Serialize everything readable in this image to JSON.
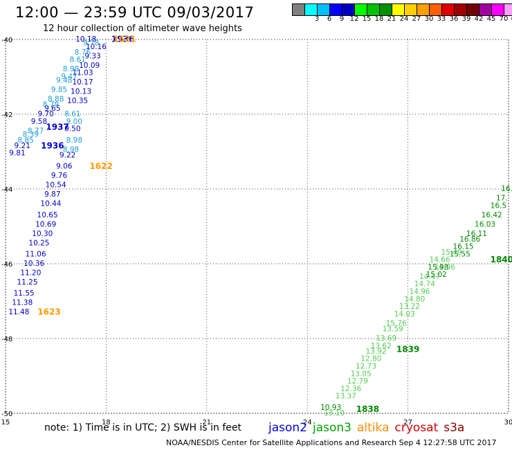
{
  "header": {
    "title": "12:00 — 23:59 UTC 09/03/2017",
    "subtitle": "12 hour collection of altimeter wave heights"
  },
  "colorbar": {
    "colors": [
      "#808080",
      "#00ffff",
      "#00bfff",
      "#0000ff",
      "#0000c0",
      "#00ff00",
      "#00c000",
      "#009000",
      "#ffff00",
      "#ffd000",
      "#ffa000",
      "#ff6000",
      "#e00000",
      "#a00000",
      "#700000",
      "#a000a0",
      "#ff00ff",
      "#ffa0ff",
      "#000000"
    ],
    "labels": [
      "3",
      "6",
      "9",
      "12",
      "15",
      "18",
      "21",
      "24",
      "27",
      "30",
      "33",
      "36",
      "39",
      "42",
      "45",
      "70",
      "(ft)"
    ]
  },
  "note": "note:  1) Time is in UTC;  2) SWH is in feet",
  "legend": [
    {
      "name": "jason2",
      "color": "#0000e0"
    },
    {
      "name": "jason3",
      "color": "#00a000"
    },
    {
      "name": "altika",
      "color": "#ff8c00"
    },
    {
      "name": "cryosat",
      "color": "#d00000"
    },
    {
      "name": "s3a",
      "color": "#8b0000"
    }
  ],
  "footer": "NOAA/NESDIS Center for Satellite Applications and Research    Sep  4 12:27:58 UTC 2017",
  "chart_data": {
    "type": "scatter",
    "xlim": [
      15,
      30
    ],
    "ylim": [
      -50,
      -40
    ],
    "xticks": [
      "15",
      "18",
      "21",
      "24",
      "27",
      "30"
    ],
    "yticks": [
      "-40",
      "-42",
      "-44",
      "-46",
      "-48",
      "-50"
    ],
    "grid": true,
    "series": [
      {
        "name": "jason2 track 1936/1937",
        "color": "#0000cc",
        "points": [
          {
            "x": 17.4,
            "y": -40.0,
            "label": "10.18"
          },
          {
            "x": 17.7,
            "y": -40.2,
            "label": "10.16"
          },
          {
            "x": 17.6,
            "y": -40.45,
            "label": "9.33"
          },
          {
            "x": 17.5,
            "y": -40.7,
            "label": "10.09"
          },
          {
            "x": 17.3,
            "y": -40.9,
            "label": "11.03"
          },
          {
            "x": 17.3,
            "y": -41.15,
            "label": "10.17"
          },
          {
            "x": 17.25,
            "y": -41.4,
            "label": "10.13"
          },
          {
            "x": 17.15,
            "y": -41.65,
            "label": "10.35"
          },
          {
            "x": 16.4,
            "y": -41.85,
            "label": "9.65"
          },
          {
            "x": 16.2,
            "y": -42.0,
            "label": "9.70"
          },
          {
            "x": 16.0,
            "y": -42.2,
            "label": "9.58"
          },
          {
            "x": 17.0,
            "y": -42.4,
            "label": "9.50"
          },
          {
            "x": 15.5,
            "y": -42.85,
            "label": "9.21"
          },
          {
            "x": 15.35,
            "y": -43.05,
            "label": "9.81"
          },
          {
            "x": 16.85,
            "y": -43.1,
            "label": "9.22"
          },
          {
            "x": 16.75,
            "y": -43.4,
            "label": "9.06"
          },
          {
            "x": 16.6,
            "y": -43.65,
            "label": "9.76"
          },
          {
            "x": 16.5,
            "y": -43.9,
            "label": "10.54"
          },
          {
            "x": 16.4,
            "y": -44.15,
            "label": "9.87"
          },
          {
            "x": 16.35,
            "y": -44.4,
            "label": "10.44"
          },
          {
            "x": 16.25,
            "y": -44.7,
            "label": "10.65"
          },
          {
            "x": 16.2,
            "y": -44.95,
            "label": "10.69"
          },
          {
            "x": 16.1,
            "y": -45.2,
            "label": "10.30"
          },
          {
            "x": 16.0,
            "y": -45.45,
            "label": "10.25"
          },
          {
            "x": 15.9,
            "y": -45.75,
            "label": "11.06"
          },
          {
            "x": 15.85,
            "y": -46.0,
            "label": "10.36"
          },
          {
            "x": 15.75,
            "y": -46.25,
            "label": "11.20"
          },
          {
            "x": 15.65,
            "y": -46.5,
            "label": "11.25"
          },
          {
            "x": 15.55,
            "y": -46.8,
            "label": "11.55"
          },
          {
            "x": 15.5,
            "y": -47.05,
            "label": "11.38"
          },
          {
            "x": 15.4,
            "y": -47.3,
            "label": "11.48"
          }
        ]
      },
      {
        "name": "jason2 track 1937 (light)",
        "color": "#1ea0d8",
        "points": [
          {
            "x": 17.55,
            "y": -40.1,
            "label": "9.78"
          },
          {
            "x": 17.3,
            "y": -40.35,
            "label": "8.76"
          },
          {
            "x": 17.15,
            "y": -40.55,
            "label": "8.61"
          },
          {
            "x": 16.95,
            "y": -40.8,
            "label": "8.98"
          },
          {
            "x": 16.9,
            "y": -41.0,
            "label": "9.47"
          },
          {
            "x": 16.75,
            "y": -41.1,
            "label": "9.48"
          },
          {
            "x": 16.6,
            "y": -41.35,
            "label": "9.85"
          },
          {
            "x": 16.5,
            "y": -41.6,
            "label": "8.88"
          },
          {
            "x": 16.35,
            "y": -41.75,
            "label": "8.79"
          },
          {
            "x": 17.0,
            "y": -42.0,
            "label": "8.61"
          },
          {
            "x": 17.05,
            "y": -42.2,
            "label": "9.00"
          },
          {
            "x": 15.9,
            "y": -42.45,
            "label": "8.77"
          },
          {
            "x": 15.75,
            "y": -42.55,
            "label": "8.39"
          },
          {
            "x": 15.6,
            "y": -42.7,
            "label": "8.85"
          },
          {
            "x": 17.05,
            "y": -42.7,
            "label": "8.98"
          },
          {
            "x": 16.95,
            "y": -42.95,
            "label": "8.98"
          }
        ]
      },
      {
        "name": "jason3 track 1838-1840 (light)",
        "color": "#55cc55",
        "points": [
          {
            "x": 24.8,
            "y": -50.0,
            "label": "13.10"
          },
          {
            "x": 25.15,
            "y": -49.55,
            "label": "13.37"
          },
          {
            "x": 25.3,
            "y": -49.35,
            "label": "12.36"
          },
          {
            "x": 25.5,
            "y": -49.15,
            "label": "12.79"
          },
          {
            "x": 25.6,
            "y": -48.95,
            "label": "13.05"
          },
          {
            "x": 25.75,
            "y": -48.75,
            "label": "12.73"
          },
          {
            "x": 25.9,
            "y": -48.55,
            "label": "12.80"
          },
          {
            "x": 26.05,
            "y": -48.35,
            "label": "13.92"
          },
          {
            "x": 26.2,
            "y": -48.2,
            "label": "13.62"
          },
          {
            "x": 26.35,
            "y": -48.0,
            "label": "13.69"
          },
          {
            "x": 26.55,
            "y": -47.75,
            "label": "13.59"
          },
          {
            "x": 26.65,
            "y": -47.6,
            "label": "15.76"
          },
          {
            "x": 26.9,
            "y": -47.35,
            "label": "14.03"
          },
          {
            "x": 27.05,
            "y": -47.15,
            "label": "13.22"
          },
          {
            "x": 27.2,
            "y": -46.95,
            "label": "14.80"
          },
          {
            "x": 27.35,
            "y": -46.75,
            "label": "14.96"
          },
          {
            "x": 27.5,
            "y": -46.55,
            "label": "14.74"
          },
          {
            "x": 27.65,
            "y": -46.35,
            "label": "14.47"
          },
          {
            "x": 28.1,
            "y": -46.1,
            "label": "14.96"
          },
          {
            "x": 27.95,
            "y": -45.9,
            "label": "14.66"
          },
          {
            "x": 28.3,
            "y": -45.7,
            "label": "15.49"
          }
        ]
      },
      {
        "name": "jason3 track 1840 (dark)",
        "color": "#008800",
        "points": [
          {
            "x": 24.7,
            "y": -49.85,
            "label": "10.93"
          },
          {
            "x": 27.85,
            "y": -46.3,
            "label": "15.02"
          },
          {
            "x": 27.9,
            "y": -46.1,
            "label": "15.98"
          },
          {
            "x": 28.55,
            "y": -45.75,
            "label": "15.55"
          },
          {
            "x": 28.65,
            "y": -45.55,
            "label": "16.15"
          },
          {
            "x": 28.85,
            "y": -45.35,
            "label": "16.86"
          },
          {
            "x": 29.05,
            "y": -45.2,
            "label": "16.11"
          },
          {
            "x": 29.3,
            "y": -44.95,
            "label": "16.03"
          },
          {
            "x": 29.5,
            "y": -44.7,
            "label": "16.42"
          },
          {
            "x": 29.7,
            "y": -44.45,
            "label": "16.5"
          },
          {
            "x": 29.8,
            "y": -44.25,
            "label": "17."
          },
          {
            "x": 29.95,
            "y": -44.0,
            "label": "16."
          }
        ]
      },
      {
        "name": "pass numbers",
        "color": "#000080",
        "bold": true,
        "points": [
          {
            "x": 18.5,
            "y": -40.0,
            "label": "1936",
            "color": "#0000cc"
          },
          {
            "x": 16.55,
            "y": -42.35,
            "label": "1937",
            "color": "#0000cc"
          },
          {
            "x": 16.4,
            "y": -42.85,
            "label": "1936",
            "color": "#0000cc"
          },
          {
            "x": 17.85,
            "y": -43.4,
            "label": "1622",
            "color": "#ff9900"
          },
          {
            "x": 16.3,
            "y": -47.3,
            "label": "1623",
            "color": "#ff9900"
          },
          {
            "x": 18.55,
            "y": -40.0,
            "label": "1621",
            "color": "#ff9900"
          },
          {
            "x": 25.8,
            "y": -49.9,
            "label": "1838",
            "color": "#008800"
          },
          {
            "x": 27.0,
            "y": -48.3,
            "label": "1839",
            "color": "#008800"
          },
          {
            "x": 29.8,
            "y": -45.9,
            "label": "1840",
            "color": "#008800"
          }
        ]
      }
    ]
  }
}
